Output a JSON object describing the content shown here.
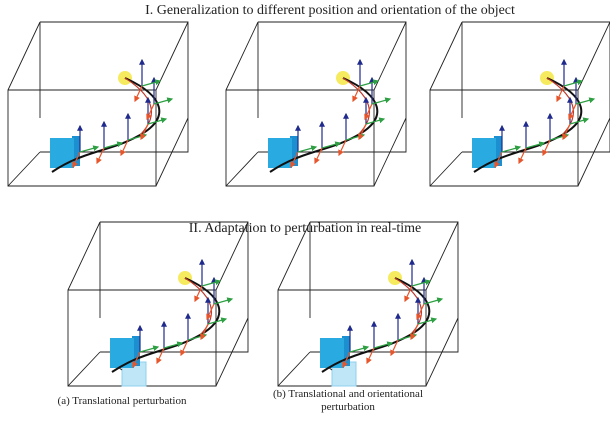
{
  "section_1": {
    "title": "I. Generalization to different position and orientation of the object"
  },
  "section_2": {
    "title": "II. Adaptation to perturbation in real-time",
    "captions": [
      {
        "lines": [
          "(a) Translational perturbation"
        ]
      },
      {
        "lines": [
          "(b) Translational and orientational",
          "perturbation"
        ]
      }
    ]
  }
}
